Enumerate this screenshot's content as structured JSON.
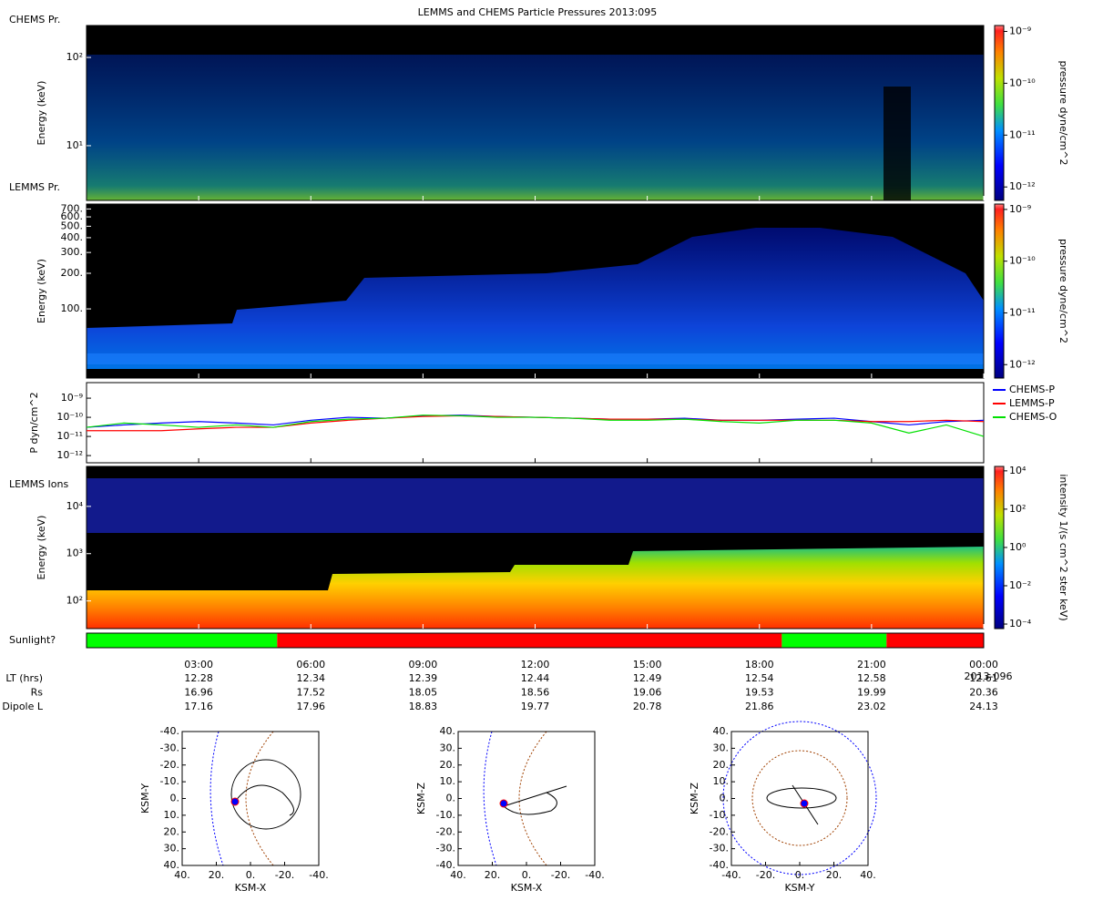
{
  "title": "LEMMS and CHEMS Particle Pressures  2013:095",
  "chart_data": [
    {
      "type": "spectrogram",
      "label": "CHEMS Pr.",
      "ylabel": "Energy (keV)",
      "log": true,
      "ylim": [
        2.4,
        230
      ],
      "yticks": [
        {
          "value": 10,
          "label": "10¹"
        },
        {
          "value": 100,
          "label": "10²"
        }
      ],
      "colorbar": {
        "label": "pressure dyne/cm^2",
        "log": true,
        "lim": [
          5.5e-13,
          1.3e-09
        ],
        "ticks": [
          {
            "value": 1e-09,
            "label": "10⁻⁹"
          },
          {
            "value": 1e-10,
            "label": "10⁻¹⁰"
          },
          {
            "value": 1e-11,
            "label": "10⁻¹¹"
          },
          {
            "value": 1e-12,
            "label": "10⁻¹²"
          }
        ]
      }
    },
    {
      "type": "spectrogram",
      "label": "LEMMS Pr.",
      "ylabel": "Energy (keV)",
      "log": true,
      "ylim": [
        26,
        770
      ],
      "yticks": [
        {
          "value": 700,
          "label": "700."
        },
        {
          "value": 600,
          "label": "600."
        },
        {
          "value": 500,
          "label": "500."
        },
        {
          "value": 400,
          "label": "400."
        },
        {
          "value": 300,
          "label": "300."
        },
        {
          "value": 200,
          "label": "200."
        },
        {
          "value": 100,
          "label": "100."
        }
      ],
      "colorbar": {
        "label": "pressure dyne/cm^2",
        "log": true,
        "lim": [
          5.5e-13,
          1.27e-09
        ],
        "ticks": [
          {
            "value": 1e-09,
            "label": "10⁻⁹"
          },
          {
            "value": 1e-10,
            "label": "10⁻¹⁰"
          },
          {
            "value": 1e-11,
            "label": "10⁻¹¹"
          },
          {
            "value": 1e-12,
            "label": "10⁻¹²"
          }
        ]
      }
    },
    {
      "type": "line",
      "ylabel": "P dyn/cm^2",
      "log": true,
      "ylim": [
        4.2e-13,
        6.5e-09
      ],
      "xlim": [
        0,
        24
      ],
      "yticks": [
        {
          "value": 1e-09,
          "label": "10⁻⁹"
        },
        {
          "value": 1e-10,
          "label": "10⁻¹⁰"
        },
        {
          "value": 1e-11,
          "label": "10⁻¹¹"
        },
        {
          "value": 1e-12,
          "label": "10⁻¹²"
        }
      ],
      "x": [
        0,
        1,
        2,
        3,
        4,
        5,
        6,
        7,
        8,
        9,
        10,
        11,
        12,
        13,
        14,
        15,
        16,
        17,
        18,
        19,
        20,
        21,
        22,
        23,
        24
      ],
      "series": [
        {
          "name": "CHEMS-P",
          "color": "#0000ff",
          "values": [
            3e-11,
            4e-11,
            5e-11,
            6e-11,
            5e-11,
            4e-11,
            7e-11,
            1e-10,
            9e-11,
            1.2e-10,
            1.3e-10,
            1.1e-10,
            1e-10,
            9e-11,
            8e-11,
            8e-11,
            9e-11,
            7e-11,
            7e-11,
            8e-11,
            9e-11,
            6e-11,
            4e-11,
            6e-11,
            7e-11
          ]
        },
        {
          "name": "LEMMS-P",
          "color": "#ff0000",
          "values": [
            2e-11,
            2e-11,
            2e-11,
            2.5e-11,
            3e-11,
            3e-11,
            5e-11,
            7e-11,
            9e-11,
            1.1e-10,
            1.2e-10,
            1.1e-10,
            1e-10,
            9e-11,
            8e-11,
            8e-11,
            8e-11,
            7e-11,
            7e-11,
            7e-11,
            7e-11,
            6e-11,
            6e-11,
            7e-11,
            6e-11
          ]
        },
        {
          "name": "CHEMS-O",
          "color": "#00e000",
          "values": [
            3e-11,
            5e-11,
            4e-11,
            3e-11,
            4e-11,
            3e-11,
            6e-11,
            8e-11,
            9e-11,
            1.3e-10,
            1.2e-10,
            1e-10,
            1e-10,
            9e-11,
            7e-11,
            7e-11,
            8e-11,
            6e-11,
            5e-11,
            7e-11,
            7e-11,
            5e-11,
            1.5e-11,
            4e-11,
            1e-11
          ]
        }
      ]
    },
    {
      "type": "spectrogram",
      "label": "LEMMS Ions",
      "ylabel": "Energy (keV)",
      "log": true,
      "ylim": [
        26,
        70000
      ],
      "yticks": [
        {
          "value": 10000,
          "label": "10⁴"
        },
        {
          "value": 1000,
          "label": "10³"
        },
        {
          "value": 100,
          "label": "10²"
        }
      ],
      "colorbar": {
        "label": "intensity 1/(s cm^2 ster keV)",
        "log": true,
        "lim": [
          5.8e-05,
          17000
        ],
        "ticks": [
          {
            "value": 10000,
            "label": "10⁴"
          },
          {
            "value": 100,
            "label": "10²"
          },
          {
            "value": 1,
            "label": "10⁰"
          },
          {
            "value": 0.01,
            "label": "10⁻²"
          },
          {
            "value": 0.0001,
            "label": "10⁻⁴"
          }
        ]
      }
    },
    {
      "type": "timeline",
      "label": "Sunlight?",
      "xlim": [
        0,
        24
      ],
      "segments": [
        {
          "start": 0,
          "end": 5.1,
          "color": "#00ff00"
        },
        {
          "start": 5.1,
          "end": 18.6,
          "color": "#ff0000"
        },
        {
          "start": 18.6,
          "end": 21.4,
          "color": "#00ff00"
        },
        {
          "start": 21.4,
          "end": 24,
          "color": "#ff0000"
        }
      ]
    }
  ],
  "time_axis": {
    "xlim": [
      0,
      24
    ],
    "xticks": [
      {
        "value": 3,
        "label": "03:00"
      },
      {
        "value": 6,
        "label": "06:00"
      },
      {
        "value": 9,
        "label": "09:00"
      },
      {
        "value": 12,
        "label": "12:00"
      },
      {
        "value": 15,
        "label": "15:00"
      },
      {
        "value": 18,
        "label": "18:00"
      },
      {
        "value": 21,
        "label": "21:00"
      },
      {
        "value": 24,
        "label": "00:00"
      }
    ],
    "date_label": "2013-096",
    "rows": [
      {
        "name": "LT (hrs)",
        "values": [
          12.28,
          12.34,
          12.39,
          12.44,
          12.49,
          12.54,
          12.58,
          12.61
        ]
      },
      {
        "name": "Rs",
        "values": [
          16.96,
          17.52,
          18.05,
          18.56,
          19.06,
          19.53,
          19.99,
          20.36
        ]
      },
      {
        "name": "Dipole L",
        "values": [
          17.16,
          17.96,
          18.83,
          19.77,
          20.78,
          21.86,
          23.02,
          24.13
        ]
      }
    ]
  },
  "orbits": [
    {
      "xlabel": "KSM-X",
      "ylabel": "KSM-Y",
      "xlim": [
        40,
        -40
      ],
      "ylim": [
        40,
        -40
      ],
      "xticks": [
        {
          "value": 40,
          "label": "40."
        },
        {
          "value": 20,
          "label": "20."
        },
        {
          "value": 0,
          "label": "0."
        },
        {
          "value": -20,
          "label": "-20."
        },
        {
          "value": -40,
          "label": "-40."
        }
      ],
      "yticks": [
        {
          "value": -40,
          "label": "-40."
        },
        {
          "value": -30,
          "label": "-30."
        },
        {
          "value": -20,
          "label": "-20."
        },
        {
          "value": -10,
          "label": "-10."
        },
        {
          "value": 0,
          "label": "0."
        },
        {
          "value": 10,
          "label": "10."
        },
        {
          "value": 20,
          "label": "20."
        },
        {
          "value": 30,
          "label": "30."
        },
        {
          "value": 40,
          "label": "40."
        }
      ]
    },
    {
      "xlabel": "KSM-X",
      "ylabel": "KSM-Z",
      "xlim": [
        40,
        -40
      ],
      "ylim": [
        -40,
        40
      ],
      "xticks": [
        {
          "value": 40,
          "label": "40."
        },
        {
          "value": 20,
          "label": "20."
        },
        {
          "value": 0,
          "label": "0."
        },
        {
          "value": -20,
          "label": "-20."
        },
        {
          "value": -40,
          "label": "-40."
        }
      ],
      "yticks": [
        {
          "value": 40,
          "label": "40."
        },
        {
          "value": 30,
          "label": "30."
        },
        {
          "value": 20,
          "label": "20."
        },
        {
          "value": 10,
          "label": "10."
        },
        {
          "value": 0,
          "label": "0."
        },
        {
          "value": -10,
          "label": "-10."
        },
        {
          "value": -20,
          "label": "-20."
        },
        {
          "value": -30,
          "label": "-30."
        },
        {
          "value": -40,
          "label": "-40."
        }
      ]
    },
    {
      "xlabel": "KSM-Y",
      "ylabel": "KSM-Z",
      "xlim": [
        -40,
        40
      ],
      "ylim": [
        -40,
        40
      ],
      "xticks": [
        {
          "value": -40,
          "label": "-40."
        },
        {
          "value": -20,
          "label": "-20."
        },
        {
          "value": 0,
          "label": "0."
        },
        {
          "value": 20,
          "label": "20."
        },
        {
          "value": 40,
          "label": "40."
        }
      ],
      "yticks": [
        {
          "value": 40,
          "label": "40."
        },
        {
          "value": 30,
          "label": "30."
        },
        {
          "value": 20,
          "label": "20."
        },
        {
          "value": 10,
          "label": "10."
        },
        {
          "value": 0,
          "label": "0."
        },
        {
          "value": -10,
          "label": "-10."
        },
        {
          "value": -20,
          "label": "-20."
        },
        {
          "value": -30,
          "label": "-30."
        },
        {
          "value": -40,
          "label": "-40."
        }
      ]
    }
  ]
}
